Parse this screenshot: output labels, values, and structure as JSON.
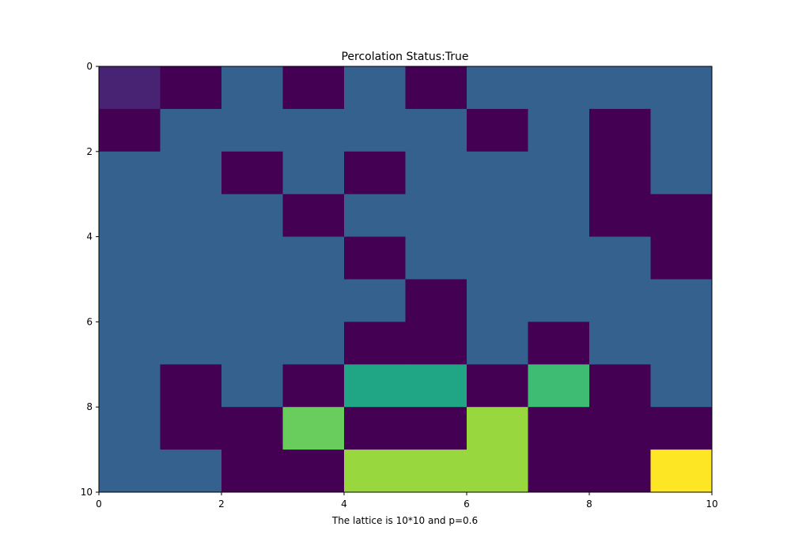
{
  "chart_data": {
    "type": "heatmap",
    "title": "Percolation Status:True",
    "xlabel": "The lattice is 10*10 and p=0.6",
    "ylabel": "",
    "xlim": [
      0,
      10
    ],
    "ylim": [
      10,
      0
    ],
    "x_ticks": [
      "0",
      "2",
      "4",
      "6",
      "8",
      "10"
    ],
    "y_ticks": [
      "0",
      "2",
      "4",
      "6",
      "8",
      "10"
    ],
    "colormap": "viridis",
    "palette": {
      "0": "#440154",
      "1": "#482273",
      "2": "#34618d",
      "3": "#21a685",
      "4": "#3fbc73",
      "5": "#68cd5c",
      "6": "#98d83e",
      "7": "#fde725"
    },
    "values": [
      [
        1,
        0,
        2,
        0,
        2,
        0,
        2,
        2,
        2,
        2
      ],
      [
        0,
        2,
        2,
        2,
        2,
        2,
        0,
        2,
        0,
        2
      ],
      [
        2,
        2,
        0,
        2,
        0,
        2,
        2,
        2,
        0,
        2
      ],
      [
        2,
        2,
        2,
        0,
        2,
        2,
        2,
        2,
        0,
        0
      ],
      [
        2,
        2,
        2,
        2,
        0,
        2,
        2,
        2,
        2,
        0
      ],
      [
        2,
        2,
        2,
        2,
        2,
        0,
        2,
        2,
        2,
        2
      ],
      [
        2,
        2,
        2,
        2,
        0,
        0,
        2,
        0,
        2,
        2
      ],
      [
        2,
        0,
        2,
        0,
        3,
        3,
        0,
        4,
        0,
        2
      ],
      [
        2,
        0,
        0,
        5,
        0,
        0,
        6,
        0,
        0,
        0
      ],
      [
        2,
        2,
        0,
        0,
        6,
        6,
        6,
        0,
        0,
        7
      ]
    ]
  }
}
